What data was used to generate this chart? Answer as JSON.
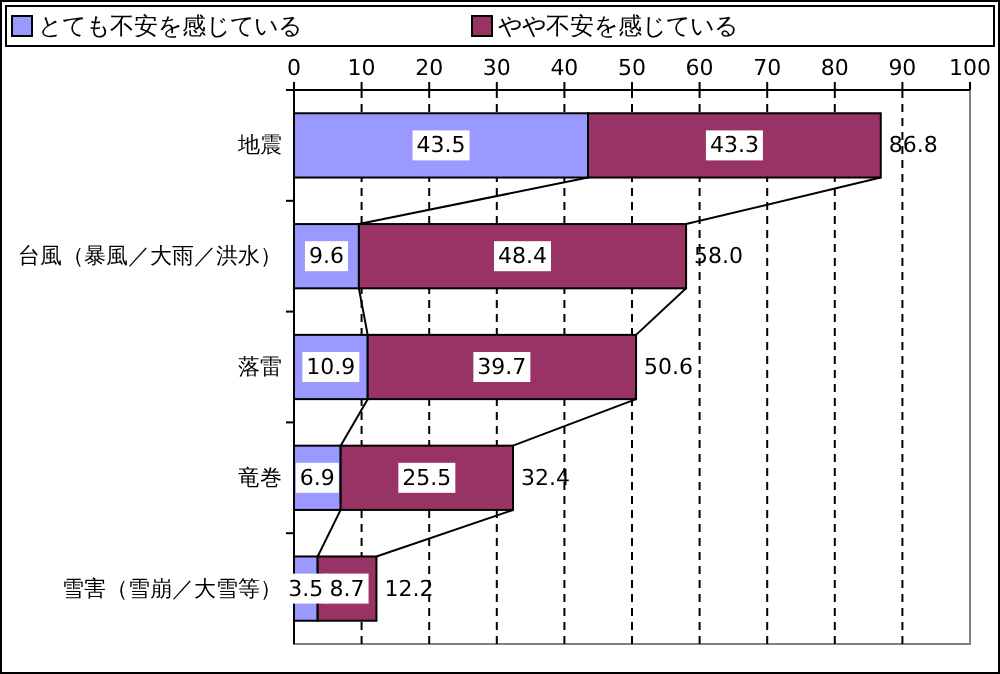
{
  "chart_data": {
    "type": "bar",
    "orientation": "horizontal",
    "stacked": true,
    "categories": [
      "地震",
      "台風（暴風／大雨／洪水）",
      "落雷",
      "竜巻",
      "雪害（雪崩／大雪等）"
    ],
    "series": [
      {
        "name": "とても不安を感じている",
        "color": "#9999ff",
        "values": [
          43.5,
          9.6,
          10.9,
          6.9,
          3.5
        ]
      },
      {
        "name": "やや不安を感じている",
        "color": "#993366",
        "values": [
          43.3,
          48.4,
          39.7,
          25.5,
          8.7
        ]
      }
    ],
    "totals": [
      "86.8",
      "58.0",
      "50.6",
      "32.4",
      "12.2"
    ],
    "data_labels": true,
    "xlim": [
      0,
      100
    ],
    "xticks": [
      0,
      10,
      20,
      30,
      40,
      50,
      60,
      70,
      80,
      90,
      100
    ],
    "grid": "x",
    "legend": "top"
  }
}
